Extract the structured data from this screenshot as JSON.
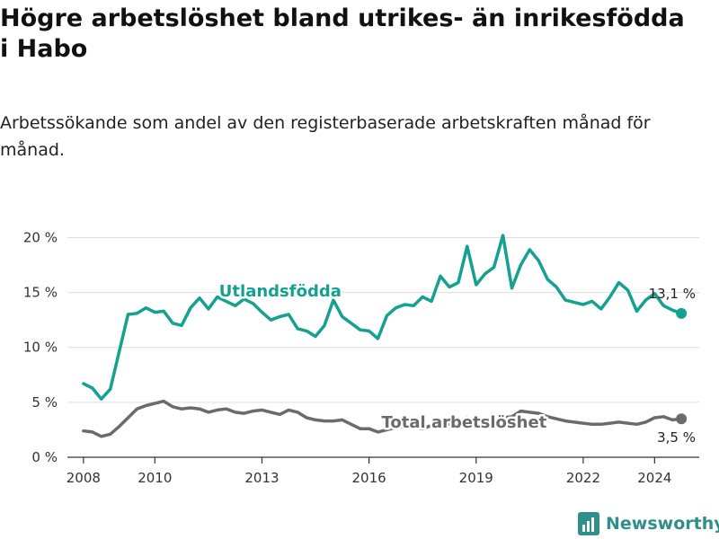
{
  "title": "Högre arbetslöshet bland utrikes- än inrikesfödda i Habo",
  "subtitle": "Arbetssökande som andel av den registerbaserade arbetskraften månad för månad.",
  "brand": {
    "name": "Newsworthy",
    "color": "#2f8f8a",
    "icon": "newsworthy-logo-icon"
  },
  "colors": {
    "utlandsfodda": "#15a18f",
    "total": "#6b6b6b",
    "grid": "#dddddd",
    "axis": "#333333"
  },
  "chart_data": {
    "type": "line",
    "title": "Högre arbetslöshet bland utrikes- än inrikesfödda i Habo",
    "subtitle": "Arbetssökande som andel av den registerbaserade arbetskraften månad för månad.",
    "xlabel": "",
    "ylabel": "",
    "xlim": [
      "2008-01",
      "2024-10"
    ],
    "ylim": [
      0,
      22
    ],
    "x_ticks": [
      "2008",
      "2010",
      "2013",
      "2016",
      "2019",
      "2022",
      "2024"
    ],
    "y_ticks": [
      "0 %",
      "5 %",
      "10 %",
      "15 %",
      "20 %"
    ],
    "grid": "horizontal",
    "legend": "inline labels",
    "series": [
      {
        "name": "Utlandsfödda",
        "color": "#15a18f",
        "end_label": "13,1 %",
        "points": [
          [
            "2008-01",
            6.7
          ],
          [
            "2008-04",
            6.3
          ],
          [
            "2008-07",
            5.3
          ],
          [
            "2008-10",
            6.2
          ],
          [
            "2009-01",
            9.6
          ],
          [
            "2009-04",
            13.0
          ],
          [
            "2009-07",
            13.1
          ],
          [
            "2009-10",
            13.6
          ],
          [
            "2010-01",
            13.2
          ],
          [
            "2010-04",
            13.3
          ],
          [
            "2010-07",
            12.2
          ],
          [
            "2010-10",
            12.0
          ],
          [
            "2011-01",
            13.6
          ],
          [
            "2011-04",
            14.5
          ],
          [
            "2011-07",
            13.5
          ],
          [
            "2011-10",
            14.6
          ],
          [
            "2012-01",
            14.2
          ],
          [
            "2012-04",
            13.8
          ],
          [
            "2012-07",
            14.4
          ],
          [
            "2012-10",
            14.0
          ],
          [
            "2013-01",
            13.2
          ],
          [
            "2013-04",
            12.5
          ],
          [
            "2013-07",
            12.8
          ],
          [
            "2013-10",
            13.0
          ],
          [
            "2014-01",
            11.7
          ],
          [
            "2014-04",
            11.5
          ],
          [
            "2014-07",
            11.0
          ],
          [
            "2014-10",
            12.0
          ],
          [
            "2015-01",
            14.3
          ],
          [
            "2015-04",
            12.8
          ],
          [
            "2015-07",
            12.2
          ],
          [
            "2015-10",
            11.6
          ],
          [
            "2016-01",
            11.5
          ],
          [
            "2016-04",
            10.8
          ],
          [
            "2016-07",
            12.9
          ],
          [
            "2016-10",
            13.6
          ],
          [
            "2017-01",
            13.9
          ],
          [
            "2017-04",
            13.8
          ],
          [
            "2017-07",
            14.6
          ],
          [
            "2017-10",
            14.2
          ],
          [
            "2018-01",
            16.5
          ],
          [
            "2018-04",
            15.5
          ],
          [
            "2018-07",
            15.9
          ],
          [
            "2018-10",
            19.2
          ],
          [
            "2019-01",
            15.7
          ],
          [
            "2019-04",
            16.7
          ],
          [
            "2019-07",
            17.3
          ],
          [
            "2019-10",
            20.2
          ],
          [
            "2020-01",
            15.4
          ],
          [
            "2020-04",
            17.5
          ],
          [
            "2020-07",
            18.9
          ],
          [
            "2020-10",
            17.9
          ],
          [
            "2021-01",
            16.2
          ],
          [
            "2021-04",
            15.5
          ],
          [
            "2021-07",
            14.3
          ],
          [
            "2021-10",
            14.1
          ],
          [
            "2022-01",
            13.9
          ],
          [
            "2022-04",
            14.2
          ],
          [
            "2022-07",
            13.5
          ],
          [
            "2022-10",
            14.6
          ],
          [
            "2023-01",
            15.9
          ],
          [
            "2023-04",
            15.2
          ],
          [
            "2023-07",
            13.3
          ],
          [
            "2023-10",
            14.3
          ],
          [
            "2024-01",
            14.9
          ],
          [
            "2024-04",
            13.8
          ],
          [
            "2024-07",
            13.4
          ],
          [
            "2024-10",
            13.1
          ]
        ]
      },
      {
        "name": "Total arbetslöshet",
        "color": "#6b6b6b",
        "end_label": "3,5 %",
        "points": [
          [
            "2008-01",
            2.4
          ],
          [
            "2008-04",
            2.3
          ],
          [
            "2008-07",
            1.9
          ],
          [
            "2008-10",
            2.1
          ],
          [
            "2009-01",
            2.8
          ],
          [
            "2009-04",
            3.6
          ],
          [
            "2009-07",
            4.4
          ],
          [
            "2009-10",
            4.7
          ],
          [
            "2010-01",
            4.9
          ],
          [
            "2010-04",
            5.1
          ],
          [
            "2010-07",
            4.6
          ],
          [
            "2010-10",
            4.4
          ],
          [
            "2011-01",
            4.5
          ],
          [
            "2011-04",
            4.4
          ],
          [
            "2011-07",
            4.1
          ],
          [
            "2011-10",
            4.3
          ],
          [
            "2012-01",
            4.4
          ],
          [
            "2012-04",
            4.1
          ],
          [
            "2012-07",
            4.0
          ],
          [
            "2012-10",
            4.2
          ],
          [
            "2013-01",
            4.3
          ],
          [
            "2013-04",
            4.1
          ],
          [
            "2013-07",
            3.9
          ],
          [
            "2013-10",
            4.3
          ],
          [
            "2014-01",
            4.1
          ],
          [
            "2014-04",
            3.6
          ],
          [
            "2014-07",
            3.4
          ],
          [
            "2014-10",
            3.3
          ],
          [
            "2015-01",
            3.3
          ],
          [
            "2015-04",
            3.4
          ],
          [
            "2015-07",
            3.0
          ],
          [
            "2015-10",
            2.6
          ],
          [
            "2016-01",
            2.6
          ],
          [
            "2016-04",
            2.3
          ],
          [
            "2016-07",
            2.5
          ],
          [
            "2016-10",
            2.7
          ],
          [
            "2017-01",
            2.8
          ],
          [
            "2017-04",
            2.7
          ],
          [
            "2017-07",
            2.6
          ],
          [
            "2017-10",
            2.9
          ],
          [
            "2018-01",
            3.1
          ],
          [
            "2018-04",
            3.0
          ],
          [
            "2018-07",
            3.1
          ],
          [
            "2018-10",
            3.6
          ],
          [
            "2019-01",
            3.1
          ],
          [
            "2019-04",
            3.2
          ],
          [
            "2019-07",
            3.4
          ],
          [
            "2019-10",
            3.6
          ],
          [
            "2020-01",
            3.7
          ],
          [
            "2020-04",
            4.2
          ],
          [
            "2020-07",
            4.1
          ],
          [
            "2020-10",
            4.0
          ],
          [
            "2021-01",
            3.7
          ],
          [
            "2021-04",
            3.5
          ],
          [
            "2021-07",
            3.3
          ],
          [
            "2021-10",
            3.2
          ],
          [
            "2022-01",
            3.1
          ],
          [
            "2022-04",
            3.0
          ],
          [
            "2022-07",
            3.0
          ],
          [
            "2022-10",
            3.1
          ],
          [
            "2023-01",
            3.2
          ],
          [
            "2023-04",
            3.1
          ],
          [
            "2023-07",
            3.0
          ],
          [
            "2023-10",
            3.2
          ],
          [
            "2024-01",
            3.6
          ],
          [
            "2024-04",
            3.7
          ],
          [
            "2024-07",
            3.4
          ],
          [
            "2024-10",
            3.5
          ]
        ]
      }
    ]
  }
}
